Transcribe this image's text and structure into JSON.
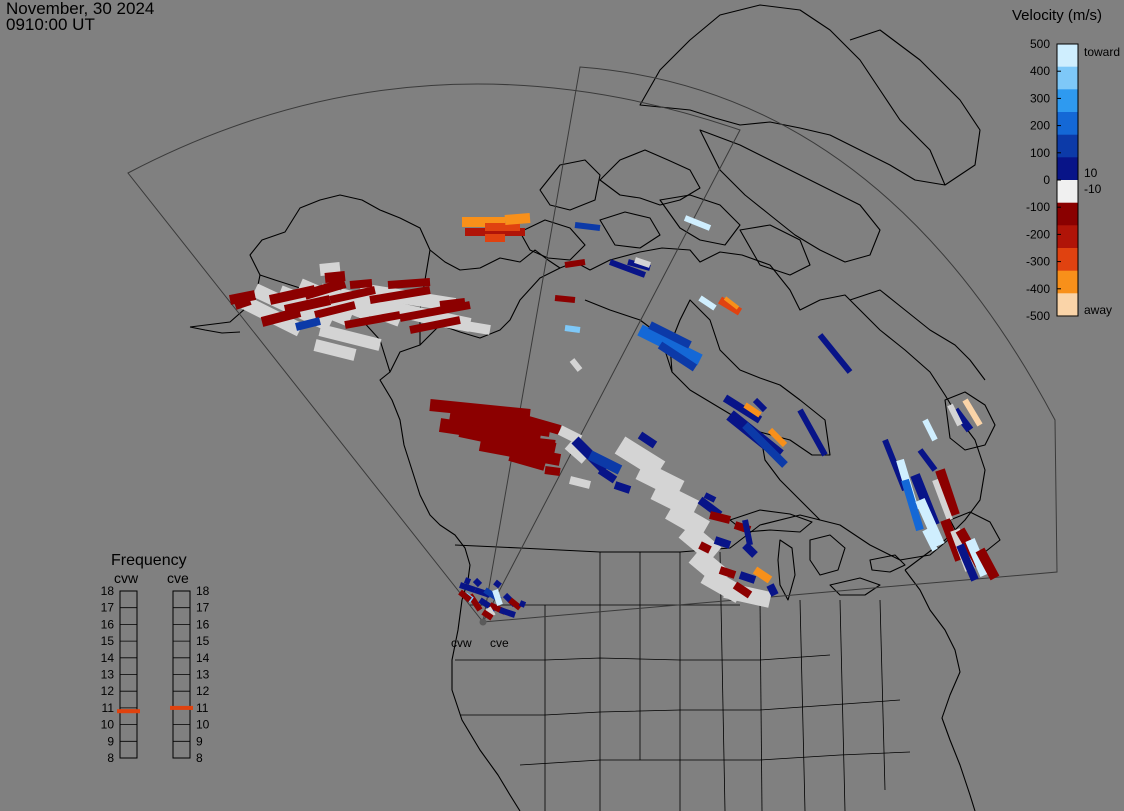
{
  "header": {
    "date": "November, 30 2024",
    "time": "0910:00 UT"
  },
  "velocity_legend": {
    "title": "Velocity (m/s)",
    "ticks": [
      "500",
      "400",
      "300",
      "200",
      "100",
      "0",
      "-100",
      "-200",
      "-300",
      "-400",
      "-500"
    ],
    "inner_labels": [
      "10",
      "-10"
    ],
    "toward_label": "toward",
    "away_label": "away",
    "colors": [
      "#cfeefe",
      "#7ec8f8",
      "#2e9af0",
      "#1468d6",
      "#0c3aa8",
      "#081488",
      "#f0f0f0",
      "#8a0000",
      "#b01408",
      "#e04210",
      "#f8901a",
      "#fad4a8"
    ]
  },
  "frequency_panel": {
    "title": "Frequency",
    "radars": [
      {
        "name": "cvw",
        "frequency_mhz": 10.8
      },
      {
        "name": "cve",
        "frequency_mhz": 11.0
      }
    ],
    "ticks": [
      "18",
      "17",
      "16",
      "15",
      "14",
      "13",
      "12",
      "11",
      "10",
      "9",
      "8"
    ],
    "marker_color": "#e0420e"
  },
  "map": {
    "radar_site_labels": [
      "cvw",
      "cve"
    ],
    "background": "#808080",
    "coastline_color": "#000000",
    "fov_outline_color": "#404040"
  }
}
